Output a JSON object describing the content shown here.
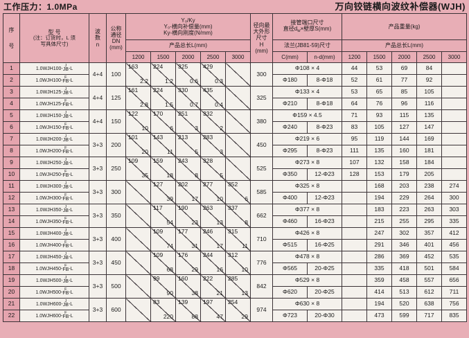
{
  "page": {
    "pressure_title": "工作压力：1.0MPa",
    "product_title": "万向铰链横向波纹补偿器(WJH)"
  },
  "header": {
    "serial_top": "序",
    "serial_bottom": "号",
    "model_line1": "型  号",
    "model_line2": "(注：订货时，L 须",
    "model_line3": "写具体尺寸)",
    "wave_l1": "波",
    "wave_l2": "数",
    "wave_l3": "n",
    "dn_l1": "公称",
    "dn_l2": "通径",
    "dn_l3": "DN",
    "dn_l4": "(mm)",
    "yk_title": "Y₀/Ky",
    "yk_line1": "Y₀-横向补偿量(mm)",
    "yk_line2": "Ky-横向刚度(N/mm)",
    "length_label": "产品总长L(mm)",
    "lengths": [
      "1200",
      "1500",
      "2000",
      "2500",
      "3000"
    ],
    "h_l1": "径向最",
    "h_l2": "大外形",
    "h_l3": "尺寸",
    "h_l4": "H",
    "h_l5": "(mm)",
    "pipe_label1": "接管端口尺寸",
    "pipe_d_prefix": "直径d",
    "pipe_d_sub": "w",
    "pipe_d_rest": "×壁厚S(mm)",
    "flange_label": "法兰(JB81-59)尺寸",
    "c_label": "C(mm)",
    "nd_label": "n-d(mm)",
    "weight_label": "产品重量(kg)",
    "weight_length_label": "产品总长L(mm)",
    "weight_lengths": [
      "1200",
      "1500",
      "2000",
      "2500",
      "3000"
    ]
  },
  "variants": {
    "j": {
      "top": "J",
      "base": "JB"
    },
    "f": {
      "top": "F",
      "base": "FB"
    }
  },
  "model_suffix": "-L",
  "groups": [
    {
      "serials": [
        "1",
        "2"
      ],
      "model_prefix": "1.0WJH100-",
      "wave": "4+4",
      "dn": "100",
      "yk": [
        [
          "163",
          "2.2"
        ],
        [
          "224",
          "1.2"
        ],
        [
          "325",
          "0.6"
        ],
        [
          "429",
          "0.3"
        ],
        [
          "",
          ""
        ]
      ],
      "h": "300",
      "pipe": "Φ108 × 4",
      "flange_c": "Φ180",
      "flange_nd": "8-Φ18",
      "weights_j": [
        "44",
        "53",
        "69",
        "84",
        ""
      ],
      "weights_f": [
        "52",
        "61",
        "77",
        "92",
        ""
      ]
    },
    {
      "serials": [
        "3",
        "4"
      ],
      "model_prefix": "1.0WJH125-",
      "wave": "4+4",
      "dn": "125",
      "yk": [
        [
          "161",
          "2.8"
        ],
        [
          "224",
          "1.5"
        ],
        [
          "330",
          "0.7"
        ],
        [
          "435",
          "0.4"
        ],
        [
          "",
          ""
        ]
      ],
      "h": "325",
      "pipe": "Φ133 × 4",
      "flange_c": "Φ210",
      "flange_nd": "8-Φ18",
      "weights_j": [
        "53",
        "65",
        "85",
        "105",
        ""
      ],
      "weights_f": [
        "64",
        "76",
        "96",
        "116",
        ""
      ]
    },
    {
      "serials": [
        "5",
        "6"
      ],
      "model_prefix": "1.0WJH150-",
      "wave": "4+4",
      "dn": "150",
      "yk": [
        [
          "122",
          "10"
        ],
        [
          "170",
          "6"
        ],
        [
          "251",
          "3"
        ],
        [
          "332",
          "2"
        ],
        [
          "",
          ""
        ]
      ],
      "h": "380",
      "pipe": "Φ159 × 4.5",
      "flange_c": "Φ240",
      "flange_nd": "8-Φ23",
      "weights_j": [
        "71",
        "93",
        "115",
        "135",
        ""
      ],
      "weights_f": [
        "83",
        "105",
        "127",
        "147",
        ""
      ]
    },
    {
      "serials": [
        "7",
        "8"
      ],
      "model_prefix": "1.0WJH200-",
      "wave": "3+3",
      "dn": "200",
      "yk": [
        [
          "101",
          "20"
        ],
        [
          "143",
          "11"
        ],
        [
          "213",
          "5"
        ],
        [
          "283",
          "3"
        ],
        [
          "",
          ""
        ]
      ],
      "h": "450",
      "pipe": "Φ219 × 6",
      "flange_c": "Φ295",
      "flange_nd": "8-Φ23",
      "weights_j": [
        "95",
        "119",
        "144",
        "169",
        ""
      ],
      "weights_f": [
        "111",
        "135",
        "160",
        "181",
        ""
      ]
    },
    {
      "serials": [
        "9",
        "10"
      ],
      "model_prefix": "1.0WJH250-",
      "wave": "3+3",
      "dn": "250",
      "yk": [
        [
          "109",
          "35"
        ],
        [
          "159",
          "18"
        ],
        [
          "243",
          "8"
        ],
        [
          "328",
          "5"
        ],
        [
          "",
          ""
        ]
      ],
      "h": "525",
      "pipe": "Φ273 × 8",
      "flange_c": "Φ350",
      "flange_nd": "12-Φ23",
      "weights_j": [
        "107",
        "132",
        "158",
        "184",
        ""
      ],
      "weights_f": [
        "128",
        "153",
        "179",
        "205",
        ""
      ]
    },
    {
      "serials": [
        "11",
        "12"
      ],
      "model_prefix": "1.0WJH300-",
      "wave": "3+3",
      "dn": "300",
      "yk": [
        [
          "",
          ""
        ],
        [
          "127",
          "39"
        ],
        [
          "202",
          "17"
        ],
        [
          "277",
          "10"
        ],
        [
          "352",
          "6"
        ]
      ],
      "h": "585",
      "pipe": "Φ325 × 8",
      "flange_c": "Φ400",
      "flange_nd": "12-Φ23",
      "weights_j": [
        "",
        "168",
        "203",
        "238",
        "274"
      ],
      "weights_f": [
        "",
        "194",
        "229",
        "264",
        "300"
      ]
    },
    {
      "serials": [
        "13",
        "14"
      ],
      "model_prefix": "1.0WJH350-",
      "wave": "3+3",
      "dn": "350",
      "yk": [
        [
          "",
          ""
        ],
        [
          "117",
          "54"
        ],
        [
          "190",
          "23"
        ],
        [
          "263",
          "13"
        ],
        [
          "337",
          "8"
        ]
      ],
      "h": "662",
      "pipe": "Φ377 × 8",
      "flange_c": "Φ460",
      "flange_nd": "16-Φ23",
      "weights_j": [
        "",
        "183",
        "223",
        "263",
        "303"
      ],
      "weights_f": [
        "",
        "215",
        "255",
        "295",
        "335"
      ]
    },
    {
      "serials": [
        "15",
        "16"
      ],
      "model_prefix": "1.0WJH400-",
      "wave": "3+3",
      "dn": "400",
      "yk": [
        [
          "",
          ""
        ],
        [
          "109",
          "74"
        ],
        [
          "177",
          "31"
        ],
        [
          "246",
          "17"
        ],
        [
          "315",
          "11"
        ]
      ],
      "h": "710",
      "pipe": "Φ426 × 8",
      "flange_c": "Φ515",
      "flange_nd": "16-Φ25",
      "weights_j": [
        "",
        "247",
        "302",
        "357",
        "412"
      ],
      "weights_f": [
        "",
        "291",
        "346",
        "401",
        "456"
      ]
    },
    {
      "serials": [
        "17",
        "18"
      ],
      "model_prefix": "1.0WJH450-",
      "wave": "3+3",
      "dn": "450",
      "yk": [
        [
          "",
          ""
        ],
        [
          "109",
          "68"
        ],
        [
          "176",
          "29"
        ],
        [
          "244",
          "16"
        ],
        [
          "312",
          "10"
        ]
      ],
      "h": "776",
      "pipe": "Φ478 × 8",
      "flange_c": "Φ565",
      "flange_nd": "20-Φ25",
      "weights_j": [
        "",
        "286",
        "369",
        "452",
        "535"
      ],
      "weights_f": [
        "",
        "335",
        "418",
        "501",
        "584"
      ]
    },
    {
      "serials": [
        "19",
        "20"
      ],
      "model_prefix": "1.0WJH500-",
      "wave": "3+3",
      "dn": "500",
      "yk": [
        [
          "",
          ""
        ],
        [
          "99",
          "90"
        ],
        [
          "160",
          "38"
        ],
        [
          "222",
          "21"
        ],
        [
          "285",
          "13"
        ]
      ],
      "h": "842",
      "pipe": "Φ529 × 8",
      "flange_c": "Φ620",
      "flange_nd": "20-Φ25",
      "weights_j": [
        "",
        "359",
        "458",
        "557",
        "656"
      ],
      "weights_f": [
        "",
        "414",
        "513",
        "612",
        "711"
      ]
    },
    {
      "serials": [
        "21",
        "22"
      ],
      "model_prefix": "1.0WJH600-",
      "wave": "3+3",
      "dn": "600",
      "yk": [
        [
          "",
          ""
        ],
        [
          "83",
          "220"
        ],
        [
          "139",
          "88"
        ],
        [
          "197",
          "47"
        ],
        [
          "254",
          "29"
        ]
      ],
      "h": "974",
      "pipe": "Φ630 × 8",
      "flange_c": "Φ723",
      "flange_nd": "20-Φ30",
      "weights_j": [
        "",
        "194",
        "520",
        "638",
        "756"
      ],
      "weights_f": [
        "",
        "473",
        "599",
        "717",
        "835"
      ]
    }
  ]
}
